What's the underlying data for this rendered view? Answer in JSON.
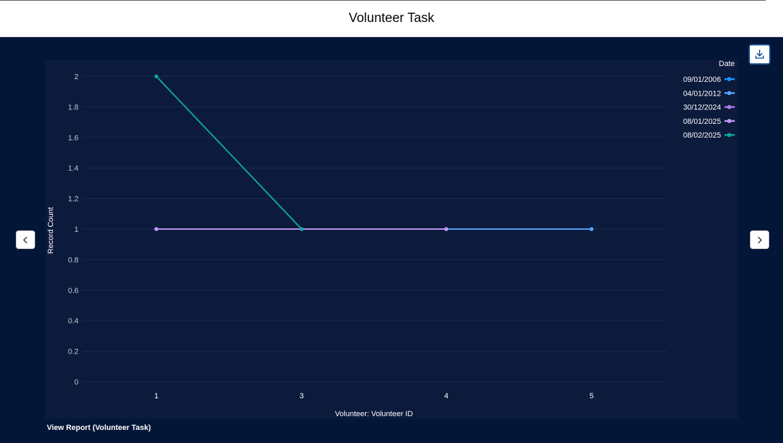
{
  "header": {
    "title": "Volunteer Task"
  },
  "toolbar": {
    "download_icon": "download-icon"
  },
  "nav": {
    "prev_icon": "chevron-left-icon",
    "next_icon": "chevron-right-icon"
  },
  "footer": {
    "link_label": "View Report (Volunteer Task)"
  },
  "colors": {
    "background": "#031637",
    "panel": "#0c1a3b",
    "series_09012006": "#1b96ff",
    "series_04012012": "#57a3fd",
    "series_30122024": "#ad7bee",
    "series_08012025": "#c398f5",
    "series_08022025": "#0da7a0"
  },
  "chart_data": {
    "type": "line",
    "xlabel": "Volunteer: Volunteer ID",
    "ylabel": "Record Count",
    "categories": [
      "1",
      "3",
      "4",
      "5"
    ],
    "ylim": [
      0,
      2
    ],
    "yticks": [
      "0",
      "0.2",
      "0.4",
      "0.6",
      "0.8",
      "1",
      "1.2",
      "1.4",
      "1.6",
      "1.8",
      "2"
    ],
    "grid": true,
    "legend_title": "Date",
    "legend_position": "top-right",
    "series": [
      {
        "name": "09/01/2006",
        "color": "#1b96ff",
        "points": [
          [
            2,
            1
          ],
          [
            3,
            1
          ]
        ]
      },
      {
        "name": "04/01/2012",
        "color": "#57a3fd",
        "points": [
          [
            2,
            1
          ],
          [
            3,
            1
          ]
        ]
      },
      {
        "name": "30/12/2024",
        "color": "#ad7bee",
        "points": [
          [
            0,
            1
          ],
          [
            1,
            1
          ],
          [
            2,
            1
          ]
        ]
      },
      {
        "name": "08/01/2025",
        "color": "#c398f5",
        "points": [
          [
            0,
            1
          ],
          [
            1,
            1
          ],
          [
            2,
            1
          ]
        ]
      },
      {
        "name": "08/02/2025",
        "color": "#0da7a0",
        "points": [
          [
            0,
            2
          ],
          [
            1,
            1
          ]
        ]
      }
    ]
  }
}
